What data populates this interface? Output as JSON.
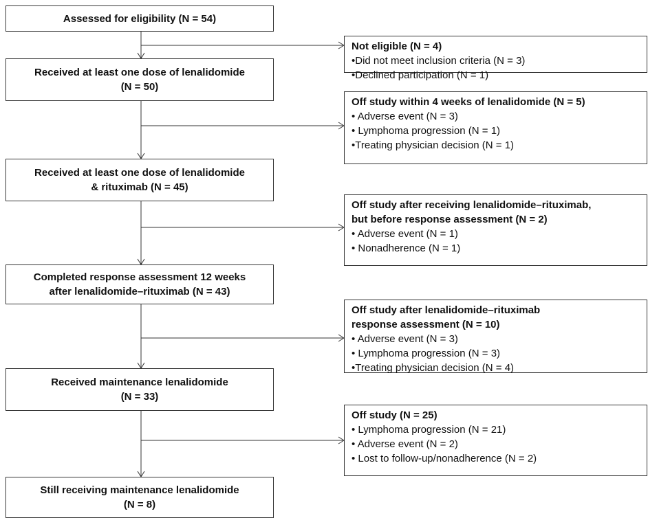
{
  "left_boxes": [
    {
      "lines": [
        "Assessed for eligibility (N = 54)"
      ]
    },
    {
      "lines": [
        "Received at least one dose of lenalidomide",
        "(N = 50)"
      ]
    },
    {
      "lines": [
        "Received at least one dose of lenalidomide",
        "& rituximab (N = 45)"
      ]
    },
    {
      "lines": [
        "Completed response assessment 12 weeks",
        "after lenalidomide–rituximab (N = 43)"
      ]
    },
    {
      "lines": [
        "Received maintenance lenalidomide",
        "(N = 33)"
      ]
    },
    {
      "lines": [
        "Still receiving maintenance lenalidomide",
        "(N = 8)"
      ]
    }
  ],
  "right_boxes": [
    {
      "title_lines": [
        "Not eligible (N = 4)"
      ],
      "items": [
        "•Did not meet inclusion criteria (N = 3)",
        "•Declined participation (N = 1)"
      ]
    },
    {
      "title_lines": [
        "Off study within 4 weeks of lenalidomide (N = 5)"
      ],
      "items": [
        "• Adverse event (N = 3)",
        "• Lymphoma progression (N = 1)",
        "•Treating physician decision (N = 1)"
      ]
    },
    {
      "title_lines": [
        "Off study after receiving lenalidomide–rituximab,",
        "but before response assessment (N = 2)"
      ],
      "items": [
        "• Adverse event (N = 1)",
        "• Nonadherence (N = 1)"
      ]
    },
    {
      "title_lines": [
        "Off study after lenalidomide–rituximab",
        "response assessment (N = 10)"
      ],
      "items": [
        "• Adverse event (N = 3)",
        "• Lymphoma progression (N = 3)",
        "•Treating physician decision (N = 4)"
      ]
    },
    {
      "title_lines": [
        "Off study (N = 25)"
      ],
      "items": [
        "• Lymphoma progression (N = 21)",
        "• Adverse event (N = 2)",
        "• Lost to follow-up/nonadherence (N = 2)"
      ]
    }
  ]
}
